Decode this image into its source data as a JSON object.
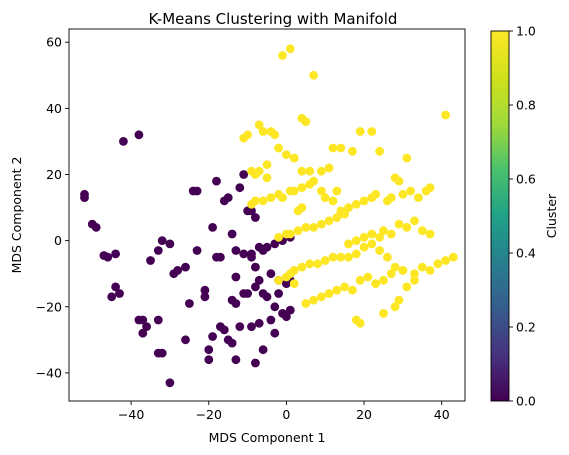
{
  "chart_data": {
    "type": "scatter",
    "title": "K-Means Clustering with Manifold",
    "xlabel": "MDS Component 1",
    "ylabel": "MDS Component 2",
    "xlim": [
      -56,
      46
    ],
    "ylim": [
      -48.5,
      64
    ],
    "xticks": [
      -40,
      -20,
      0,
      20,
      40
    ],
    "yticks": [
      -40,
      -20,
      0,
      20,
      40,
      60
    ],
    "grid": false,
    "colorbar": {
      "label": "Cluster",
      "range": [
        0.0,
        1.0
      ],
      "ticks": [
        "0.0",
        "0.2",
        "0.4",
        "0.6",
        "0.8",
        "1.0"
      ],
      "colormap": "viridis"
    },
    "colors": {
      "cluster_0": "#440154",
      "cluster_1": "#fde725"
    },
    "series": [
      {
        "cluster": 0,
        "points": [
          [
            -52,
            14
          ],
          [
            -52,
            13
          ],
          [
            -50,
            5
          ],
          [
            -49,
            4
          ],
          [
            -47,
            -4.5
          ],
          [
            -46,
            -5
          ],
          [
            -44,
            -14
          ],
          [
            -43,
            -16
          ],
          [
            -45,
            -17
          ],
          [
            -44,
            -4
          ],
          [
            -42,
            30
          ],
          [
            -38,
            32
          ],
          [
            -38,
            -24
          ],
          [
            -37,
            -24
          ],
          [
            -36,
            -26
          ],
          [
            -37,
            -28
          ],
          [
            -35,
            -6
          ],
          [
            -33,
            -3
          ],
          [
            -33,
            -34
          ],
          [
            -32,
            -34
          ],
          [
            -30,
            -43
          ],
          [
            -33,
            -24
          ],
          [
            -32,
            0
          ],
          [
            -30,
            -1
          ],
          [
            -29,
            -10
          ],
          [
            -28,
            -9
          ],
          [
            -26,
            -8
          ],
          [
            -26,
            -30
          ],
          [
            -25,
            -19
          ],
          [
            -24,
            15
          ],
          [
            -23,
            15
          ],
          [
            -23,
            -3
          ],
          [
            -21,
            -15
          ],
          [
            -21,
            -17
          ],
          [
            -20,
            -33
          ],
          [
            -20,
            -36
          ],
          [
            -19,
            -29
          ],
          [
            -19,
            4
          ],
          [
            -18,
            -5
          ],
          [
            -17,
            -5
          ],
          [
            -17,
            -26
          ],
          [
            -16,
            -27
          ],
          [
            -18,
            18
          ],
          [
            -16,
            12
          ],
          [
            -15,
            13
          ],
          [
            -14,
            2
          ],
          [
            -14,
            -18
          ],
          [
            -13,
            -19
          ],
          [
            -13,
            -11
          ],
          [
            -15,
            -30
          ],
          [
            -14,
            -31
          ],
          [
            -13,
            -36
          ],
          [
            -12,
            16
          ],
          [
            -11,
            20
          ],
          [
            -10,
            9
          ],
          [
            -9,
            9
          ],
          [
            -11,
            -4
          ],
          [
            -9,
            -4
          ],
          [
            -8,
            -8
          ],
          [
            -7,
            -12
          ],
          [
            -11,
            -16
          ],
          [
            -10,
            -16
          ],
          [
            -8,
            -14
          ],
          [
            -12,
            -26
          ],
          [
            -9,
            -26
          ],
          [
            -6,
            -16
          ],
          [
            -5,
            -17
          ],
          [
            -3,
            -20
          ],
          [
            -7,
            -25
          ],
          [
            -8,
            -37
          ],
          [
            -6,
            -33
          ],
          [
            -4,
            -24
          ],
          [
            -2,
            -16
          ],
          [
            -3,
            -28
          ],
          [
            -1,
            -22
          ],
          [
            -5,
            -2
          ],
          [
            -3,
            -1
          ],
          [
            -1,
            0
          ],
          [
            1,
            1
          ],
          [
            -4,
            -10
          ],
          [
            -2,
            -12
          ],
          [
            0,
            -13
          ],
          [
            1,
            -12
          ],
          [
            0,
            -23
          ],
          [
            1,
            -21
          ],
          [
            -7,
            -2
          ],
          [
            -6,
            -3
          ],
          [
            -8,
            7
          ],
          [
            -9,
            -5
          ],
          [
            -13,
            -3
          ]
        ]
      },
      {
        "cluster": 1,
        "points": [
          [
            1,
            58
          ],
          [
            -1,
            56
          ],
          [
            4,
            37
          ],
          [
            5,
            36
          ],
          [
            7,
            50
          ],
          [
            -7,
            35
          ],
          [
            -6,
            33
          ],
          [
            -4,
            33
          ],
          [
            -3,
            32
          ],
          [
            -11,
            31
          ],
          [
            -10,
            32
          ],
          [
            -9,
            21
          ],
          [
            -8,
            20
          ],
          [
            -7,
            21
          ],
          [
            -5,
            23
          ],
          [
            -5,
            19
          ],
          [
            -2,
            28
          ],
          [
            0,
            26
          ],
          [
            2,
            25
          ],
          [
            4,
            21
          ],
          [
            6,
            21
          ],
          [
            9,
            21
          ],
          [
            12,
            28
          ],
          [
            14,
            28
          ],
          [
            19,
            33
          ],
          [
            22,
            33
          ],
          [
            24,
            27
          ],
          [
            28,
            19
          ],
          [
            29,
            18
          ],
          [
            31,
            25
          ],
          [
            -9,
            11
          ],
          [
            -8,
            12
          ],
          [
            -6,
            12
          ],
          [
            -4,
            13
          ],
          [
            -2,
            14
          ],
          [
            -1,
            13
          ],
          [
            1,
            15
          ],
          [
            2,
            15
          ],
          [
            4,
            16
          ],
          [
            6,
            17
          ],
          [
            7,
            18
          ],
          [
            9,
            15
          ],
          [
            10,
            13
          ],
          [
            12,
            12
          ],
          [
            13,
            15
          ],
          [
            14,
            9
          ],
          [
            16,
            10
          ],
          [
            18,
            11
          ],
          [
            20,
            12
          ],
          [
            22,
            13
          ],
          [
            23,
            14
          ],
          [
            26,
            12
          ],
          [
            27,
            13
          ],
          [
            30,
            14
          ],
          [
            32,
            15
          ],
          [
            34,
            13
          ],
          [
            36,
            15
          ],
          [
            37,
            16
          ],
          [
            3,
            9
          ],
          [
            4,
            10
          ],
          [
            -2,
            1
          ],
          [
            0,
            2
          ],
          [
            1,
            2
          ],
          [
            3,
            3
          ],
          [
            5,
            4
          ],
          [
            7,
            4
          ],
          [
            9,
            5
          ],
          [
            11,
            6
          ],
          [
            13,
            7
          ],
          [
            15,
            8
          ],
          [
            16,
            -1
          ],
          [
            18,
            0
          ],
          [
            20,
            1
          ],
          [
            22,
            2
          ],
          [
            24,
            1
          ],
          [
            25,
            3
          ],
          [
            27,
            2
          ],
          [
            29,
            5
          ],
          [
            31,
            4
          ],
          [
            33,
            6
          ],
          [
            35,
            3
          ],
          [
            37,
            2
          ],
          [
            1,
            -10
          ],
          [
            2,
            -9
          ],
          [
            4,
            -8
          ],
          [
            6,
            -7
          ],
          [
            8,
            -7
          ],
          [
            10,
            -6
          ],
          [
            12,
            -5
          ],
          [
            14,
            -5
          ],
          [
            16,
            -5
          ],
          [
            18,
            -4
          ],
          [
            20,
            -2
          ],
          [
            22,
            -1
          ],
          [
            24,
            -3
          ],
          [
            26,
            -5
          ],
          [
            28,
            -8
          ],
          [
            30,
            -9
          ],
          [
            33,
            -10
          ],
          [
            35,
            -8
          ],
          [
            37,
            -9
          ],
          [
            39,
            -7
          ],
          [
            41,
            -6
          ],
          [
            43,
            -5
          ],
          [
            5,
            -19
          ],
          [
            7,
            -18
          ],
          [
            9,
            -17
          ],
          [
            11,
            -16
          ],
          [
            13,
            -15
          ],
          [
            15,
            -14
          ],
          [
            17,
            -15
          ],
          [
            19,
            -12
          ],
          [
            21,
            -11
          ],
          [
            23,
            -13
          ],
          [
            25,
            -12
          ],
          [
            27,
            -10
          ],
          [
            30,
            -9
          ],
          [
            31,
            -14
          ],
          [
            33,
            -12
          ],
          [
            18,
            -24
          ],
          [
            19,
            -25
          ],
          [
            25,
            -22
          ],
          [
            28,
            -20
          ],
          [
            29,
            -18
          ],
          [
            41,
            38
          ],
          [
            -2,
            -12
          ],
          [
            0,
            -11
          ],
          [
            2,
            -13
          ],
          [
            11,
            22
          ],
          [
            17,
            27
          ]
        ]
      }
    ]
  }
}
